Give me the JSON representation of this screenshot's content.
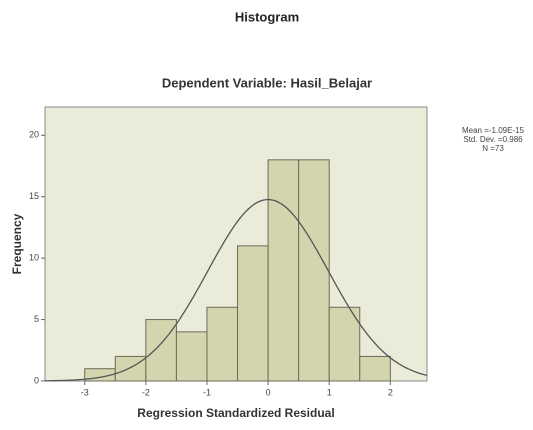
{
  "chart_data": {
    "type": "histogram",
    "title": "Histogram",
    "subtitle": "Dependent Variable: Hasil_Belajar",
    "x_label": "Regression Standardized Residual",
    "y_label": "Frequency",
    "bins": [
      -3,
      -2.5,
      -2,
      -1.5,
      -1,
      -0.5,
      0,
      0.5,
      1,
      1.5,
      2
    ],
    "values": [
      1,
      2,
      5,
      4,
      6,
      11,
      18,
      18,
      6,
      2
    ],
    "color": "#d3d5ae",
    "edge_color": "#6b6b5a",
    "curve_color": "#555555",
    "plot_background": "#eaecd9",
    "xlim": [
      -3.65,
      2.6
    ],
    "xticks": [
      -3,
      -2,
      -1,
      0,
      1,
      2
    ],
    "ylim": [
      0,
      22.3
    ],
    "yticks": [
      0,
      5,
      10,
      15,
      20
    ],
    "stats": [
      {
        "name": "Mean =",
        "value": -1.09e-15,
        "label": "-1.09E-15"
      },
      {
        "name": "Std. Dev. =",
        "value": 0.986
      },
      {
        "name": "N =",
        "value": 73
      }
    ]
  }
}
